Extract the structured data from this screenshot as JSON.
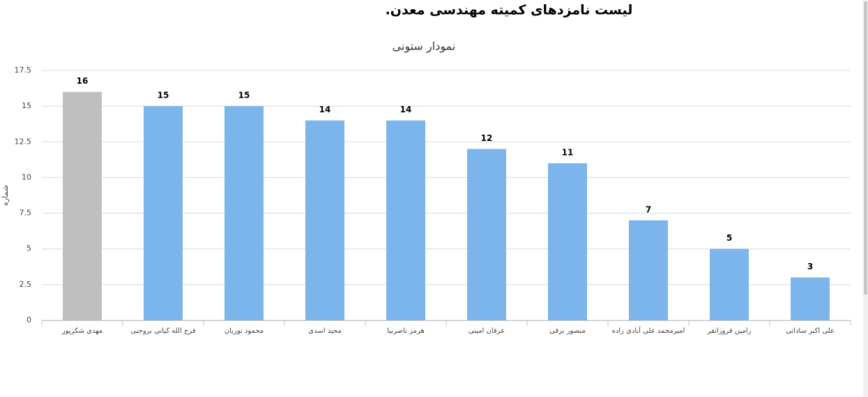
{
  "chart_data": {
    "type": "bar",
    "title": "لیست نامزدهای کمیته  مهندسی معدن.",
    "subtitle": "نمودار ستونی",
    "y_label": "شماره",
    "categories": [
      "مهدی شکرپور",
      "فرج الله کیانی بروجنی",
      "محمود نوریان",
      "مجید اسدی",
      "هرمز ناصرنیا",
      "عرفان امینی",
      "منصور برقی",
      "امیرمحمد علی آبادی زاده",
      "رامین فروزانفر",
      "علی اکبر ساداتی"
    ],
    "values": [
      16,
      15,
      15,
      14,
      14,
      12,
      11,
      7,
      5,
      3
    ],
    "colors": [
      "#bfbfbf",
      "#7cb5ec",
      "#7cb5ec",
      "#7cb5ec",
      "#7cb5ec",
      "#7cb5ec",
      "#7cb5ec",
      "#7cb5ec",
      "#7cb5ec",
      "#7cb5ec"
    ],
    "ylim": [
      0,
      17.5
    ],
    "yticks": [
      0,
      2.5,
      5,
      7.5,
      10,
      12.5,
      15,
      17.5
    ],
    "grid": true
  }
}
